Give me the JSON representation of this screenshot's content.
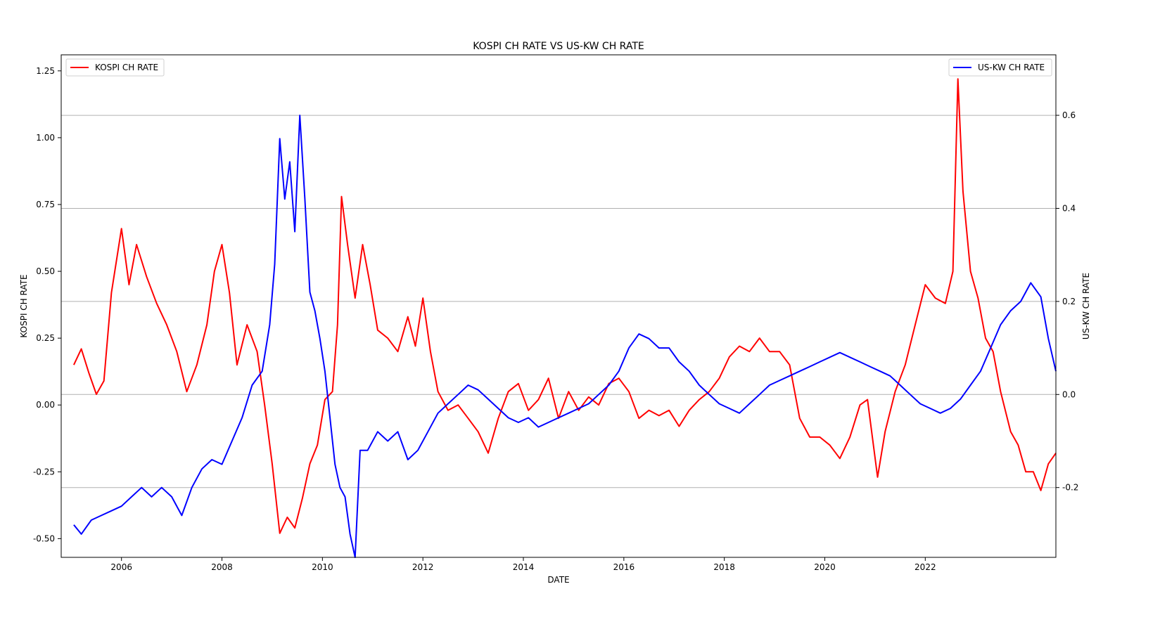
{
  "chart_data": {
    "type": "line",
    "title": "KOSPI CH RATE VS US-KW CH RATE",
    "xlabel": "DATE",
    "ylabel_left": "KOSPI CH RATE",
    "ylabel_right": "US-KW CH RATE",
    "x_ticks": [
      "2006",
      "2008",
      "2010",
      "2012",
      "2014",
      "2016",
      "2018",
      "2020",
      "2022"
    ],
    "y_left_ticks": [
      "-0.50",
      "-0.25",
      "0.00",
      "0.25",
      "0.50",
      "0.75",
      "1.00",
      "1.25"
    ],
    "y_right_ticks": [
      "-0.2",
      "0.0",
      "0.2",
      "0.4",
      "0.6"
    ],
    "xlim": [
      2004.8,
      2024.6
    ],
    "ylim_left": [
      -0.57,
      1.31
    ],
    "ylim_right": [
      -0.35,
      0.73
    ],
    "grid": "horizontal lines at right-axis ticks",
    "legend_left": "top-left",
    "legend_right": "top-right",
    "series": [
      {
        "name": "KOSPI CH RATE",
        "axis": "left",
        "color": "#ff0000",
        "points": [
          [
            2005.05,
            0.15
          ],
          [
            2005.2,
            0.21
          ],
          [
            2005.35,
            0.12
          ],
          [
            2005.5,
            0.04
          ],
          [
            2005.65,
            0.09
          ],
          [
            2005.8,
            0.42
          ],
          [
            2006.0,
            0.66
          ],
          [
            2006.15,
            0.45
          ],
          [
            2006.3,
            0.6
          ],
          [
            2006.5,
            0.48
          ],
          [
            2006.7,
            0.38
          ],
          [
            2006.9,
            0.3
          ],
          [
            2007.1,
            0.2
          ],
          [
            2007.3,
            0.05
          ],
          [
            2007.5,
            0.15
          ],
          [
            2007.7,
            0.3
          ],
          [
            2007.85,
            0.5
          ],
          [
            2008.0,
            0.6
          ],
          [
            2008.15,
            0.42
          ],
          [
            2008.3,
            0.15
          ],
          [
            2008.5,
            0.3
          ],
          [
            2008.7,
            0.2
          ],
          [
            2008.85,
            0.0
          ],
          [
            2009.0,
            -0.22
          ],
          [
            2009.15,
            -0.48
          ],
          [
            2009.3,
            -0.42
          ],
          [
            2009.45,
            -0.46
          ],
          [
            2009.6,
            -0.35
          ],
          [
            2009.75,
            -0.22
          ],
          [
            2009.9,
            -0.15
          ],
          [
            2010.05,
            0.02
          ],
          [
            2010.2,
            0.05
          ],
          [
            2010.3,
            0.3
          ],
          [
            2010.38,
            0.78
          ],
          [
            2010.5,
            0.6
          ],
          [
            2010.65,
            0.4
          ],
          [
            2010.8,
            0.6
          ],
          [
            2010.95,
            0.45
          ],
          [
            2011.1,
            0.28
          ],
          [
            2011.3,
            0.25
          ],
          [
            2011.5,
            0.2
          ],
          [
            2011.7,
            0.33
          ],
          [
            2011.85,
            0.22
          ],
          [
            2012.0,
            0.4
          ],
          [
            2012.15,
            0.2
          ],
          [
            2012.3,
            0.05
          ],
          [
            2012.5,
            -0.02
          ],
          [
            2012.7,
            0.0
          ],
          [
            2012.9,
            -0.05
          ],
          [
            2013.1,
            -0.1
          ],
          [
            2013.3,
            -0.18
          ],
          [
            2013.5,
            -0.05
          ],
          [
            2013.7,
            0.05
          ],
          [
            2013.9,
            0.08
          ],
          [
            2014.1,
            -0.02
          ],
          [
            2014.3,
            0.02
          ],
          [
            2014.5,
            0.1
          ],
          [
            2014.7,
            -0.05
          ],
          [
            2014.9,
            0.05
          ],
          [
            2015.1,
            -0.02
          ],
          [
            2015.3,
            0.03
          ],
          [
            2015.5,
            0.0
          ],
          [
            2015.7,
            0.08
          ],
          [
            2015.9,
            0.1
          ],
          [
            2016.1,
            0.05
          ],
          [
            2016.3,
            -0.05
          ],
          [
            2016.5,
            -0.02
          ],
          [
            2016.7,
            -0.04
          ],
          [
            2016.9,
            -0.02
          ],
          [
            2017.1,
            -0.08
          ],
          [
            2017.3,
            -0.02
          ],
          [
            2017.5,
            0.02
          ],
          [
            2017.7,
            0.05
          ],
          [
            2017.9,
            0.1
          ],
          [
            2018.1,
            0.18
          ],
          [
            2018.3,
            0.22
          ],
          [
            2018.5,
            0.2
          ],
          [
            2018.7,
            0.25
          ],
          [
            2018.9,
            0.2
          ],
          [
            2019.1,
            0.2
          ],
          [
            2019.3,
            0.15
          ],
          [
            2019.5,
            -0.05
          ],
          [
            2019.7,
            -0.12
          ],
          [
            2019.9,
            -0.12
          ],
          [
            2020.1,
            -0.15
          ],
          [
            2020.3,
            -0.2
          ],
          [
            2020.5,
            -0.12
          ],
          [
            2020.7,
            0.0
          ],
          [
            2020.85,
            0.02
          ],
          [
            2021.05,
            -0.27
          ],
          [
            2021.2,
            -0.1
          ],
          [
            2021.4,
            0.05
          ],
          [
            2021.6,
            0.15
          ],
          [
            2021.8,
            0.3
          ],
          [
            2022.0,
            0.45
          ],
          [
            2022.2,
            0.4
          ],
          [
            2022.4,
            0.38
          ],
          [
            2022.55,
            0.5
          ],
          [
            2022.65,
            1.22
          ],
          [
            2022.75,
            0.8
          ],
          [
            2022.9,
            0.5
          ],
          [
            2023.05,
            0.4
          ],
          [
            2023.2,
            0.25
          ],
          [
            2023.35,
            0.2
          ],
          [
            2023.5,
            0.05
          ],
          [
            2023.7,
            -0.1
          ],
          [
            2023.85,
            -0.15
          ],
          [
            2024.0,
            -0.25
          ],
          [
            2024.15,
            -0.25
          ],
          [
            2024.3,
            -0.32
          ],
          [
            2024.45,
            -0.22
          ],
          [
            2024.6,
            -0.18
          ]
        ]
      },
      {
        "name": "US-KW CH RATE",
        "axis": "right",
        "color": "#0000ff",
        "points": [
          [
            2005.05,
            -0.28
          ],
          [
            2005.2,
            -0.3
          ],
          [
            2005.4,
            -0.27
          ],
          [
            2005.6,
            -0.26
          ],
          [
            2005.8,
            -0.25
          ],
          [
            2006.0,
            -0.24
          ],
          [
            2006.2,
            -0.22
          ],
          [
            2006.4,
            -0.2
          ],
          [
            2006.6,
            -0.22
          ],
          [
            2006.8,
            -0.2
          ],
          [
            2007.0,
            -0.22
          ],
          [
            2007.2,
            -0.26
          ],
          [
            2007.4,
            -0.2
          ],
          [
            2007.6,
            -0.16
          ],
          [
            2007.8,
            -0.14
          ],
          [
            2008.0,
            -0.15
          ],
          [
            2008.2,
            -0.1
          ],
          [
            2008.4,
            -0.05
          ],
          [
            2008.6,
            0.02
          ],
          [
            2008.8,
            0.05
          ],
          [
            2008.95,
            0.15
          ],
          [
            2009.05,
            0.28
          ],
          [
            2009.15,
            0.55
          ],
          [
            2009.25,
            0.42
          ],
          [
            2009.35,
            0.5
          ],
          [
            2009.45,
            0.35
          ],
          [
            2009.55,
            0.6
          ],
          [
            2009.65,
            0.42
          ],
          [
            2009.75,
            0.22
          ],
          [
            2009.85,
            0.18
          ],
          [
            2009.95,
            0.12
          ],
          [
            2010.05,
            0.05
          ],
          [
            2010.15,
            -0.05
          ],
          [
            2010.25,
            -0.15
          ],
          [
            2010.35,
            -0.2
          ],
          [
            2010.45,
            -0.22
          ],
          [
            2010.55,
            -0.3
          ],
          [
            2010.65,
            -0.35
          ],
          [
            2010.75,
            -0.12
          ],
          [
            2010.9,
            -0.12
          ],
          [
            2011.1,
            -0.08
          ],
          [
            2011.3,
            -0.1
          ],
          [
            2011.5,
            -0.08
          ],
          [
            2011.7,
            -0.14
          ],
          [
            2011.9,
            -0.12
          ],
          [
            2012.1,
            -0.08
          ],
          [
            2012.3,
            -0.04
          ],
          [
            2012.5,
            -0.02
          ],
          [
            2012.7,
            0.0
          ],
          [
            2012.9,
            0.02
          ],
          [
            2013.1,
            0.01
          ],
          [
            2013.3,
            -0.01
          ],
          [
            2013.5,
            -0.03
          ],
          [
            2013.7,
            -0.05
          ],
          [
            2013.9,
            -0.06
          ],
          [
            2014.1,
            -0.05
          ],
          [
            2014.3,
            -0.07
          ],
          [
            2014.5,
            -0.06
          ],
          [
            2014.7,
            -0.05
          ],
          [
            2014.9,
            -0.04
          ],
          [
            2015.1,
            -0.03
          ],
          [
            2015.3,
            -0.02
          ],
          [
            2015.5,
            0.0
          ],
          [
            2015.7,
            0.02
          ],
          [
            2015.9,
            0.05
          ],
          [
            2016.1,
            0.1
          ],
          [
            2016.3,
            0.13
          ],
          [
            2016.5,
            0.12
          ],
          [
            2016.7,
            0.1
          ],
          [
            2016.9,
            0.1
          ],
          [
            2017.1,
            0.07
          ],
          [
            2017.3,
            0.05
          ],
          [
            2017.5,
            0.02
          ],
          [
            2017.7,
            0.0
          ],
          [
            2017.9,
            -0.02
          ],
          [
            2018.1,
            -0.03
          ],
          [
            2018.3,
            -0.04
          ],
          [
            2018.5,
            -0.02
          ],
          [
            2018.7,
            0.0
          ],
          [
            2018.9,
            0.02
          ],
          [
            2019.1,
            0.03
          ],
          [
            2019.3,
            0.04
          ],
          [
            2019.5,
            0.05
          ],
          [
            2019.7,
            0.06
          ],
          [
            2019.9,
            0.07
          ],
          [
            2020.1,
            0.08
          ],
          [
            2020.3,
            0.09
          ],
          [
            2020.5,
            0.08
          ],
          [
            2020.7,
            0.07
          ],
          [
            2020.9,
            0.06
          ],
          [
            2021.1,
            0.05
          ],
          [
            2021.3,
            0.04
          ],
          [
            2021.5,
            0.02
          ],
          [
            2021.7,
            0.0
          ],
          [
            2021.9,
            -0.02
          ],
          [
            2022.1,
            -0.03
          ],
          [
            2022.3,
            -0.04
          ],
          [
            2022.5,
            -0.03
          ],
          [
            2022.7,
            -0.01
          ],
          [
            2022.9,
            0.02
          ],
          [
            2023.1,
            0.05
          ],
          [
            2023.3,
            0.1
          ],
          [
            2023.5,
            0.15
          ],
          [
            2023.7,
            0.18
          ],
          [
            2023.9,
            0.2
          ],
          [
            2024.1,
            0.24
          ],
          [
            2024.3,
            0.21
          ],
          [
            2024.45,
            0.12
          ],
          [
            2024.6,
            0.05
          ]
        ]
      }
    ]
  }
}
